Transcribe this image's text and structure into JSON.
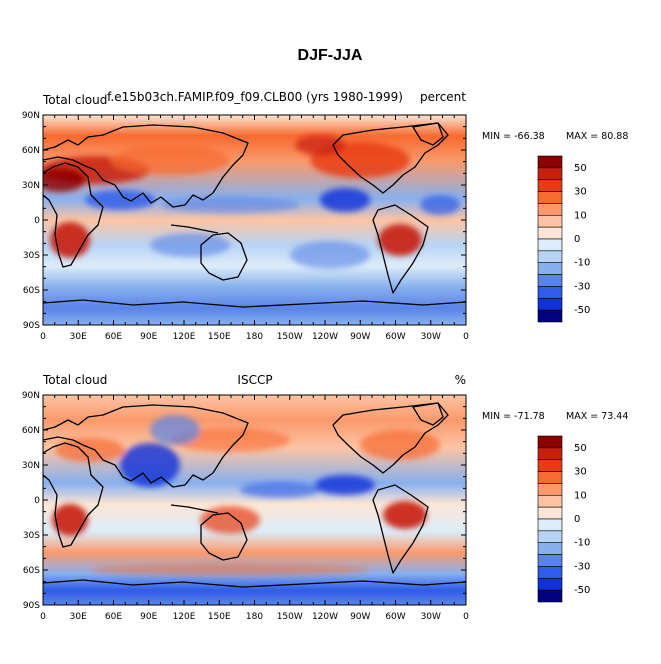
{
  "page_title": "DJF-JJA",
  "panels": [
    {
      "left_label": "Total cloud",
      "center_label": "f.e15b03ch.FAMIP.f09_f09.CLB00 (yrs 1980-1999)",
      "right_label": "percent",
      "min_text": "MIN = -66.38",
      "max_text": "MAX =  80.88"
    },
    {
      "left_label": "Total cloud",
      "center_label": "ISCCP",
      "right_label": "%",
      "min_text": "MIN = -71.78",
      "max_text": "MAX =  73.44"
    }
  ],
  "lat_ticks": [
    "90N",
    "60N",
    "30N",
    "0",
    "30S",
    "60S",
    "90S"
  ],
  "lon_ticks": [
    "0",
    "30E",
    "60E",
    "90E",
    "120E",
    "150E",
    "180",
    "150W",
    "120W",
    "90W",
    "60W",
    "30W",
    "0"
  ],
  "colorbar": {
    "labels": [
      "50",
      "30",
      "10",
      "0",
      "-10",
      "-30",
      "-50"
    ],
    "colors": [
      "#8b0000",
      "#c8200e",
      "#e83a14",
      "#f86a30",
      "#fa9a6c",
      "#fcc4a4",
      "#fde6d6",
      "#dcecfa",
      "#b8d4f4",
      "#88b0ee",
      "#5a84e8",
      "#2f5ce8",
      "#1030d8",
      "#000080"
    ]
  }
}
